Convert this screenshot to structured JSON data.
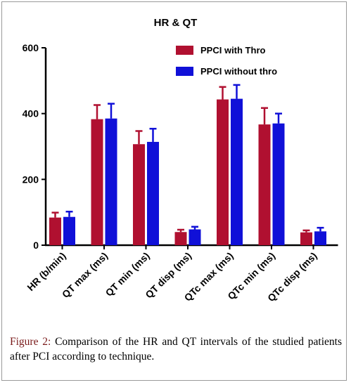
{
  "chart_data": {
    "type": "bar",
    "title": "HR & QT",
    "categories": [
      "HR (b/min)",
      "QT max (ms)",
      "QT min (ms)",
      "QT disp (ms)",
      "QTc max (ms)",
      "QTc min (ms)",
      "QTc disp (ms)"
    ],
    "series": [
      {
        "name": "PPCI with Thro",
        "color": "#b01030",
        "values": [
          84,
          383,
          307,
          40,
          443,
          367,
          39
        ],
        "errors": [
          15,
          43,
          40,
          7,
          38,
          50,
          6
        ]
      },
      {
        "name": "PPCI without thro",
        "color": "#1010d8",
        "values": [
          86,
          385,
          314,
          48,
          445,
          370,
          42
        ],
        "errors": [
          16,
          45,
          40,
          8,
          42,
          30,
          11
        ]
      }
    ],
    "ylim": [
      0,
      600
    ],
    "yticks": [
      0,
      200,
      400,
      600
    ],
    "xlabel": "",
    "ylabel": "",
    "legend_position": "top-right"
  },
  "caption": {
    "label": "Figure 2:",
    "text": " Comparison of the HR and QT intervals of the studied patients after PCI according to technique."
  }
}
